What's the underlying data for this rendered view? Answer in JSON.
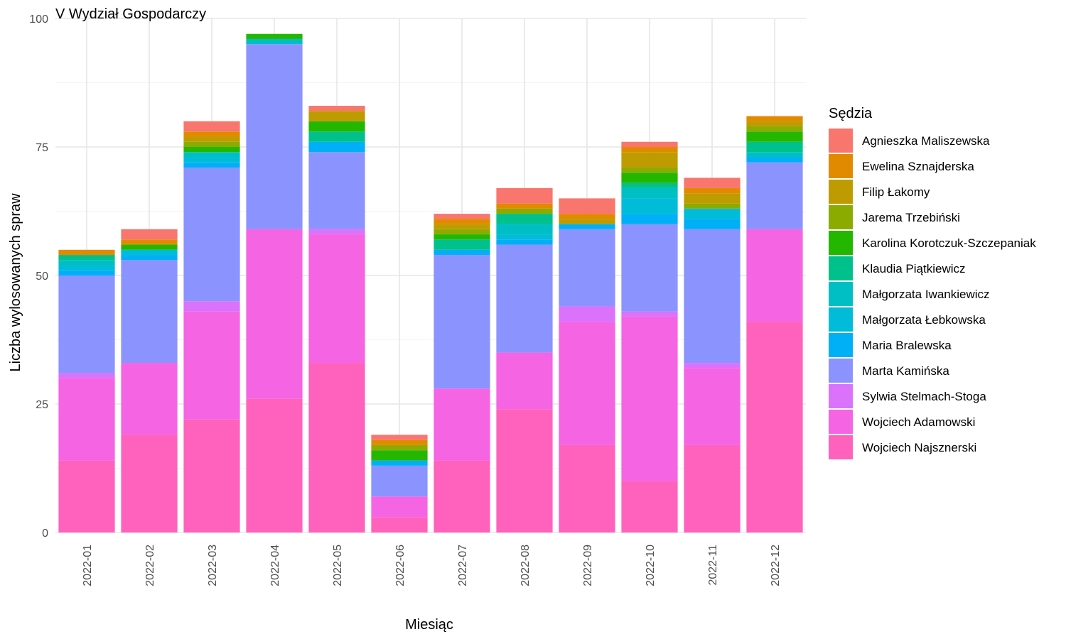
{
  "chart_data": {
    "type": "bar",
    "stacked": true,
    "title": "V Wydział Gospodarczy",
    "xlabel": "Miesiąc",
    "ylabel": "Liczba wylosowanych spraw",
    "ylim": [
      0,
      100
    ],
    "yticks": [
      0,
      25,
      50,
      75,
      100
    ],
    "grid": true,
    "legend_title": "Sędzia",
    "legend_position": "right",
    "categories": [
      "2022-01",
      "2022-02",
      "2022-03",
      "2022-04",
      "2022-05",
      "2022-06",
      "2022-07",
      "2022-08",
      "2022-09",
      "2022-10",
      "2022-11",
      "2022-12"
    ],
    "series": [
      {
        "name": "Wojciech Najsznerski",
        "color": "#FF62BC",
        "values": [
          14,
          19,
          22,
          26,
          33,
          3,
          14,
          24,
          17,
          10,
          17,
          41
        ]
      },
      {
        "name": "Wojciech Adamowski",
        "color": "#F564E3",
        "values": [
          16,
          14,
          21,
          33,
          25,
          4,
          14,
          11,
          24,
          32,
          15,
          18
        ]
      },
      {
        "name": "Sylwia Stelmach-Stoga",
        "color": "#DB72FB",
        "values": [
          1,
          0,
          2,
          0,
          1,
          0,
          0,
          0,
          3,
          1,
          1,
          0
        ]
      },
      {
        "name": "Marta Kamińska",
        "color": "#8B93FF",
        "values": [
          19,
          20,
          26,
          36,
          15,
          6,
          26,
          21,
          15,
          17,
          26,
          13
        ]
      },
      {
        "name": "Maria Bralewska",
        "color": "#00B0F6",
        "values": [
          1,
          1,
          1,
          0,
          2,
          1,
          1,
          1,
          1,
          2,
          2,
          1
        ]
      },
      {
        "name": "Małgorzata Łebkowska",
        "color": "#00BCD8",
        "values": [
          1,
          1,
          1,
          0,
          0,
          0,
          0,
          1,
          0,
          3,
          2,
          0
        ]
      },
      {
        "name": "Małgorzata Iwankiewicz",
        "color": "#00BFC4",
        "values": [
          1,
          0,
          1,
          1,
          0,
          0,
          0,
          2,
          0,
          2,
          0,
          1
        ]
      },
      {
        "name": "Klaudia Piątkiewicz",
        "color": "#00C08B",
        "values": [
          1,
          0,
          0,
          0,
          2,
          0,
          2,
          2,
          0,
          1,
          0,
          2
        ]
      },
      {
        "name": "Karolina Korotczuk-Szczepaniak",
        "color": "#24B700",
        "values": [
          0,
          1,
          1,
          1,
          2,
          2,
          1,
          0,
          0,
          2,
          0,
          2
        ]
      },
      {
        "name": "Jarema Trzebiński",
        "color": "#8CAB00",
        "values": [
          0,
          0,
          1,
          0,
          0,
          1,
          1,
          1,
          0,
          1,
          1,
          1
        ]
      },
      {
        "name": "Filip Łakomy",
        "color": "#BE9C00",
        "values": [
          0,
          0,
          1,
          0,
          2,
          0,
          1,
          0,
          1,
          3,
          2,
          1
        ]
      },
      {
        "name": "Ewelina Sznajderska",
        "color": "#E18A00",
        "values": [
          1,
          1,
          1,
          0,
          0,
          1,
          1,
          1,
          1,
          1,
          1,
          1
        ]
      },
      {
        "name": "Agnieszka Maliszewska",
        "color": "#F8766D",
        "values": [
          0,
          2,
          2,
          0,
          1,
          1,
          1,
          3,
          3,
          1,
          2,
          0
        ]
      }
    ]
  }
}
